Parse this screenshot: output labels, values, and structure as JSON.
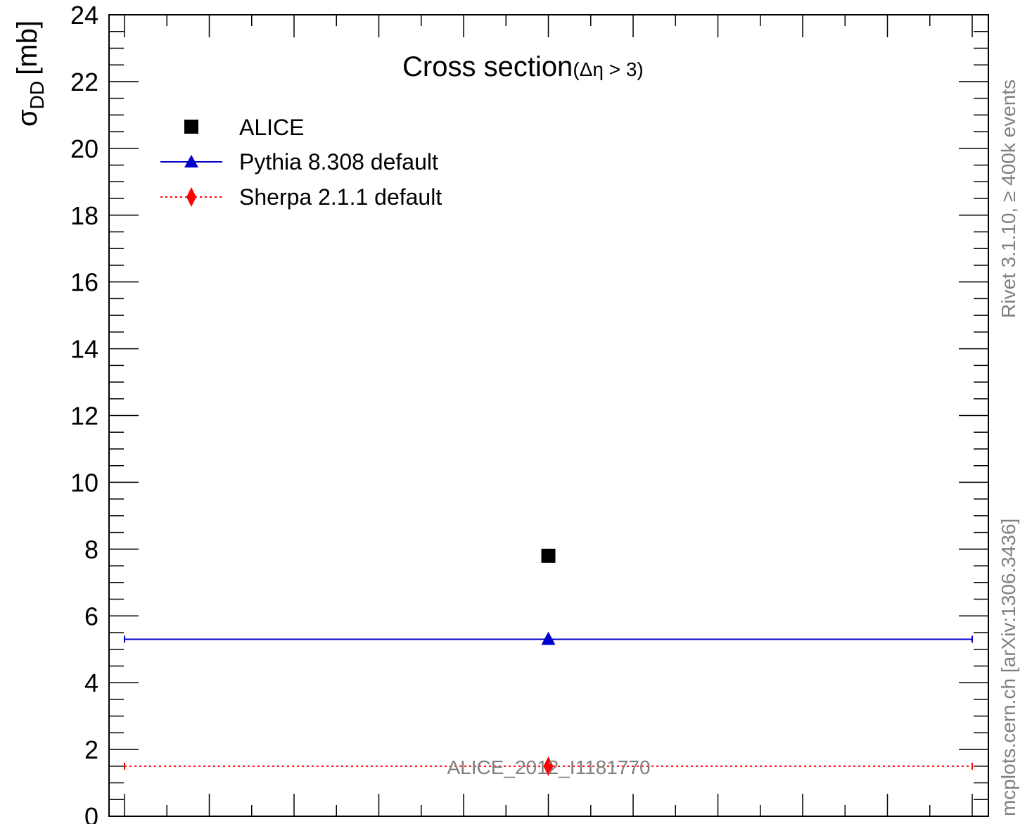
{
  "chart_data": {
    "type": "scatter",
    "title_main": "Cross section",
    "title_sub": "(Δη > 3)",
    "ylabel_symbol": "σ",
    "ylabel_subscript": "DD",
    "ylabel_unit": "[mb]",
    "ylim": [
      0,
      24
    ],
    "xlim": [
      0,
      1
    ],
    "yticks": [
      0,
      2,
      4,
      6,
      8,
      10,
      12,
      14,
      16,
      18,
      20,
      22,
      24
    ],
    "series": [
      {
        "name": "ALICE",
        "marker": "square",
        "color": "#000000",
        "x": 0.5,
        "y": 7.8,
        "xerr": null
      },
      {
        "name": "Pythia 8.308 default",
        "marker": "triangle",
        "color": "#0000cc",
        "x": 0.5,
        "y": 5.3,
        "xerr": [
          0,
          1
        ]
      },
      {
        "name": "Sherpa 2.1.1 default",
        "marker": "diamond",
        "color": "#ff0000",
        "x": 0.5,
        "y": 1.5,
        "xerr": [
          0,
          1
        ]
      }
    ],
    "analysis_label": "ALICE_2012_I1181770",
    "side_label_top": "Rivet 3.1.10, ≥ 400k events",
    "side_label_bottom": "mcplots.cern.ch [arXiv:1306.3436]"
  }
}
